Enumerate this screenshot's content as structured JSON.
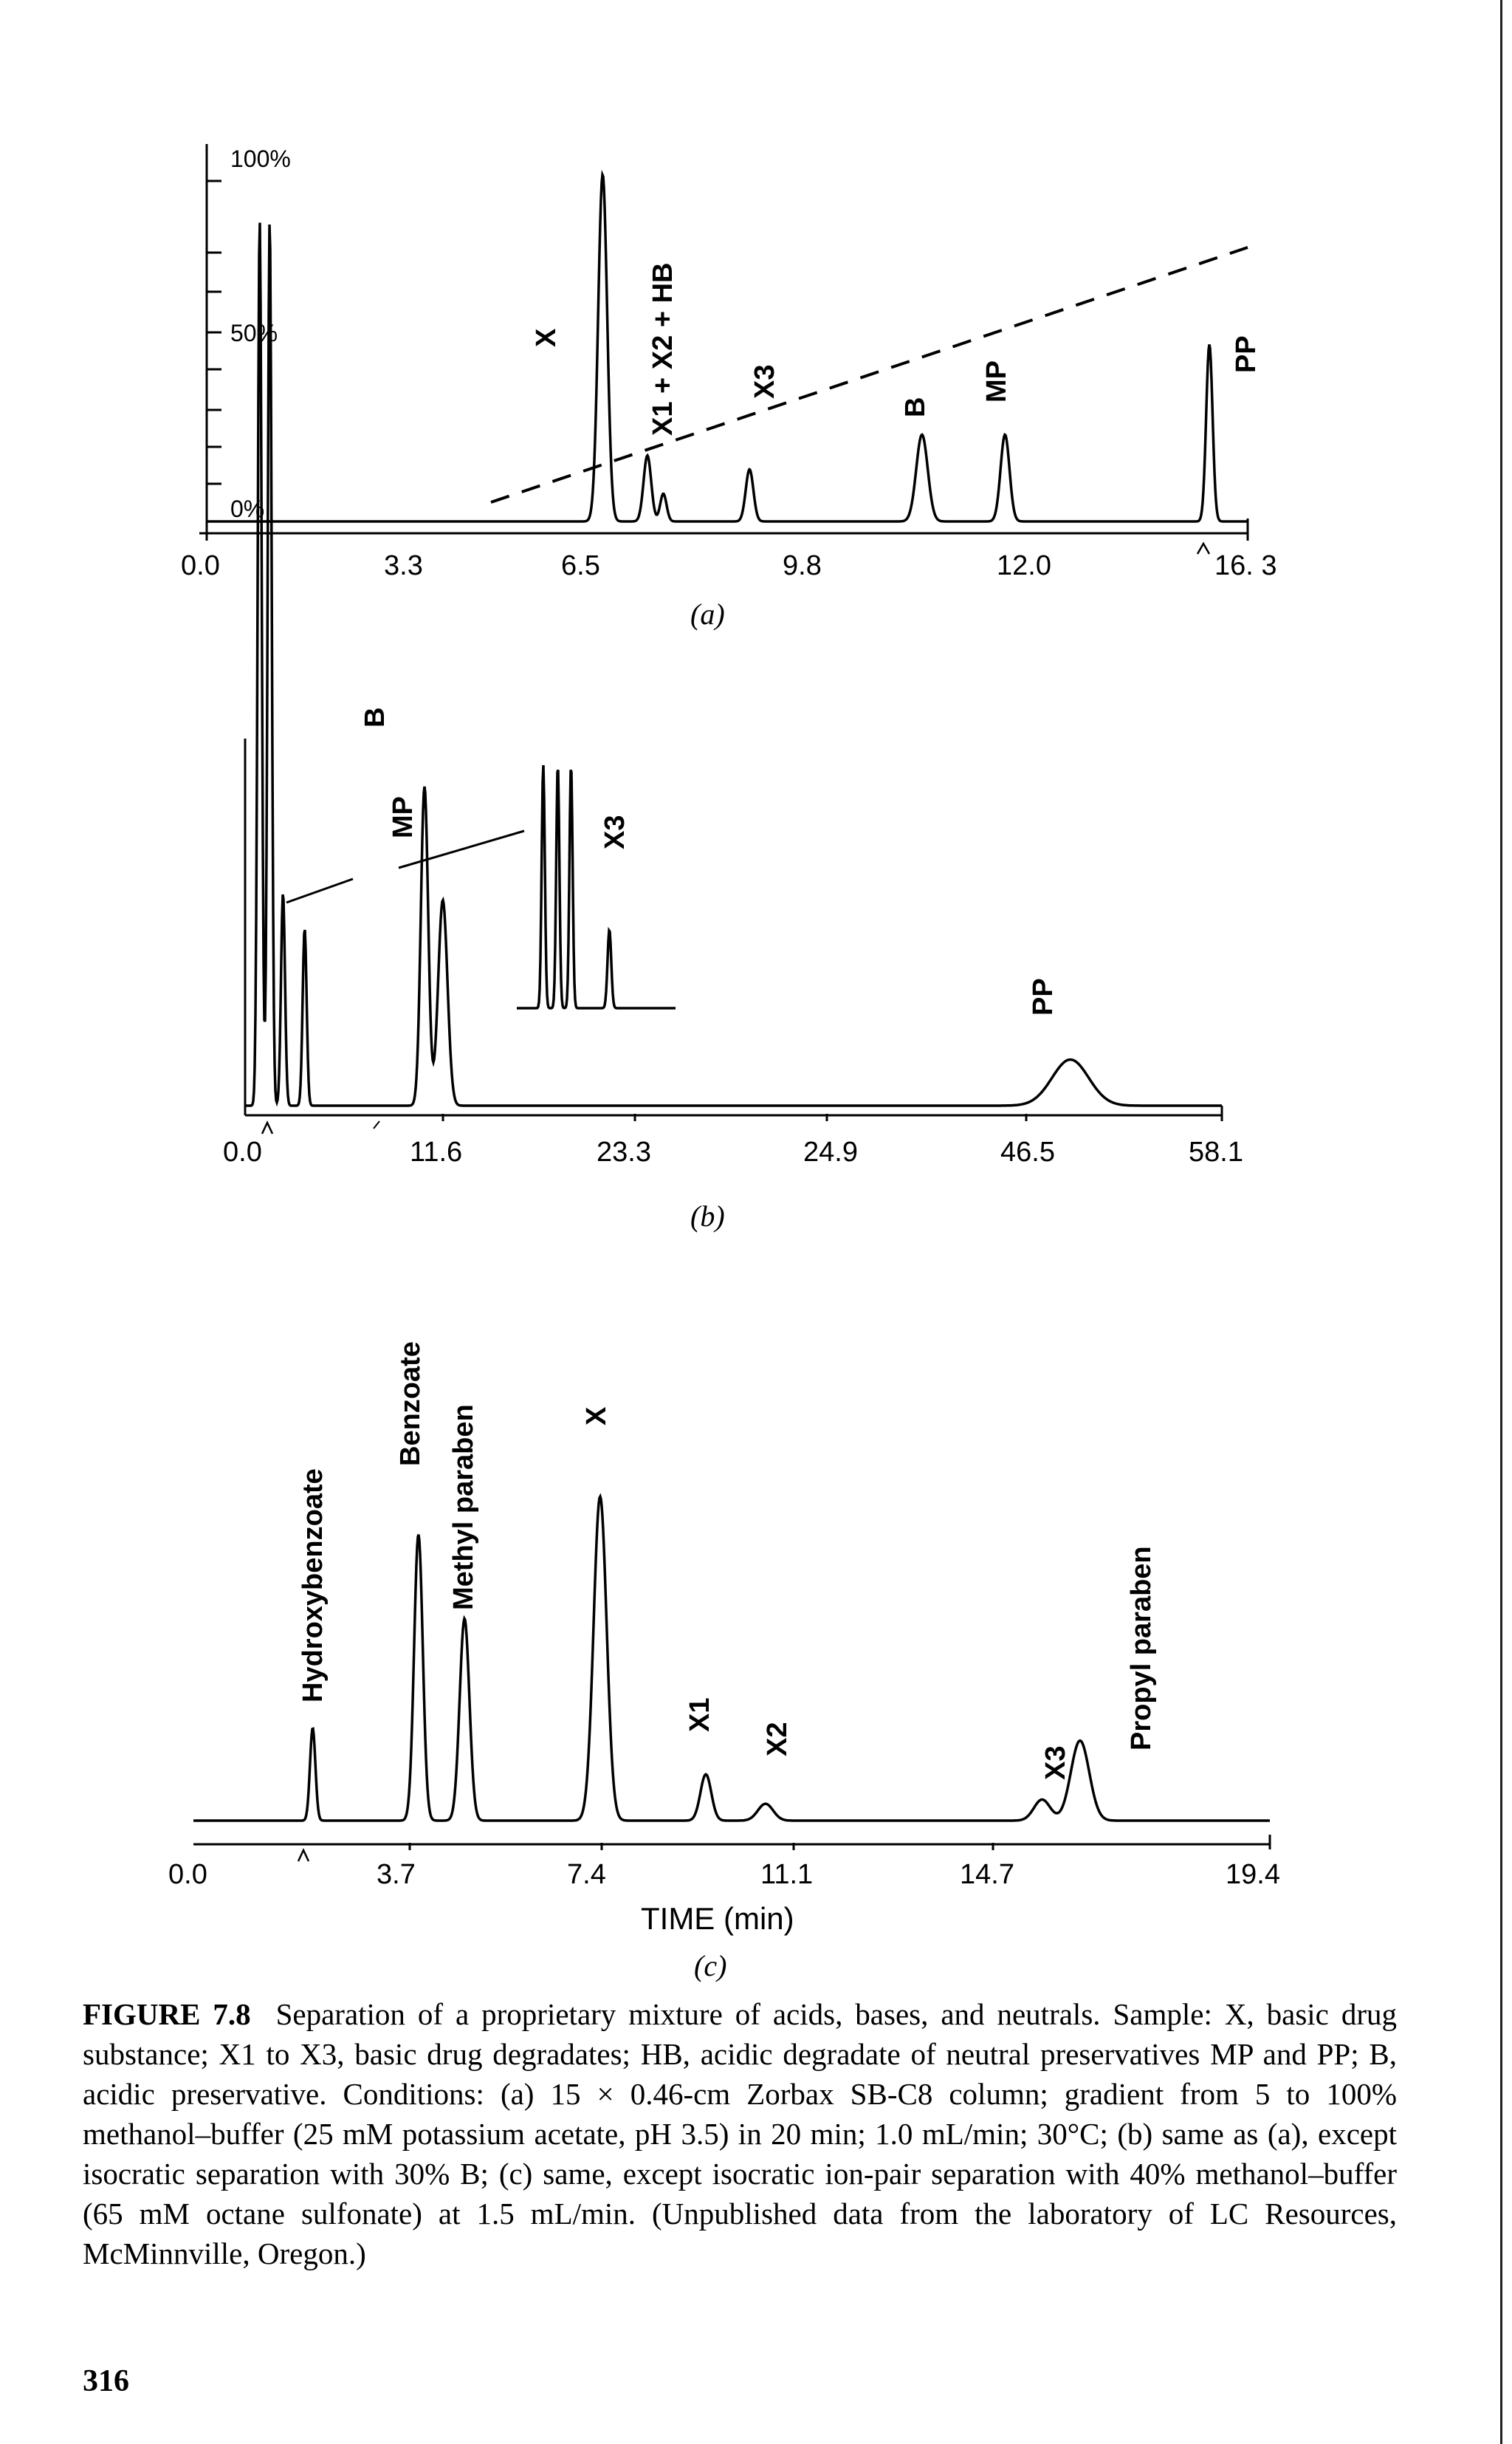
{
  "panels": [
    {
      "id": "a",
      "sublabel": "(a)",
      "x_ticks": [
        "0.0",
        "3.3",
        "6.5",
        "9.8",
        "12.0",
        "16. 3"
      ],
      "y_labels": [
        "100%",
        "50%",
        "0%"
      ],
      "peaks": [
        "X",
        "X1 + X2 + HB",
        "X3",
        "B",
        "MP",
        "PP"
      ],
      "gradient": {
        "start_percent": 5,
        "end_percent": 100
      }
    },
    {
      "id": "b",
      "sublabel": "(b)",
      "x_ticks": [
        "0.0",
        "11.6",
        "23.3",
        "24.9",
        "46.5",
        "58.1"
      ],
      "peaks": [
        "B",
        "MP",
        "X3",
        "PP"
      ]
    },
    {
      "id": "c",
      "sublabel": "(c)",
      "x_ticks": [
        "0.0",
        "3.7",
        "7.4",
        "11.1",
        "14.7",
        "19.4"
      ],
      "x_title": "TIME (min)",
      "peaks": [
        "Hydroxybenzoate",
        "Benzoate",
        "Methyl paraben",
        "X",
        "X1",
        "X2",
        "X3",
        "Propyl paraben"
      ]
    }
  ],
  "chart_data": [
    {
      "type": "line",
      "xlabel": "",
      "ylabel": "",
      "x_ticks": [
        0.0,
        3.3,
        6.5,
        9.8,
        12.0,
        16.3
      ],
      "xlim": [
        0.0,
        16.3
      ],
      "series": [
        {
          "peaks": [
            {
              "label": "X",
              "retention_time": 6.2,
              "relative_height": 1.0
            },
            {
              "label": "X1 + X2 + HB",
              "retention_time": 6.9,
              "relative_height": 0.19
            },
            {
              "label": "X3",
              "retention_time": 8.5,
              "relative_height": 0.15
            },
            {
              "label": "B",
              "retention_time": 11.2,
              "relative_height": 0.25
            },
            {
              "label": "MP",
              "retention_time": 12.5,
              "relative_height": 0.25
            },
            {
              "label": "PP",
              "retention_time": 15.7,
              "relative_height": 0.51
            }
          ]
        }
      ],
      "gradient_program": {
        "y_axis": "%B",
        "start": [
          4.6,
          5
        ],
        "end": [
          16.7,
          100
        ]
      }
    },
    {
      "type": "line",
      "xlabel": "",
      "ylabel": "",
      "x_ticks": [
        0.0,
        11.6,
        23.3,
        24.9,
        46.5,
        58.1
      ],
      "xlim": [
        0.0,
        58.1
      ],
      "series": [
        {
          "peaks": [
            {
              "label": "B",
              "retention_time": 10.2,
              "relative_height": 0.9
            },
            {
              "label": "MP",
              "retention_time": 11.3,
              "relative_height": 0.58
            },
            {
              "label": "X3",
              "retention_time": 22.5,
              "relative_height": 0.38
            },
            {
              "label": "PP",
              "retention_time": 49.0,
              "relative_height": 0.13
            }
          ]
        }
      ]
    },
    {
      "type": "line",
      "xlabel": "TIME (min)",
      "ylabel": "",
      "x_ticks": [
        0.0,
        3.7,
        7.4,
        11.1,
        14.7,
        19.4
      ],
      "xlim": [
        0.0,
        19.4
      ],
      "series": [
        {
          "peaks": [
            {
              "label": "Hydroxybenzoate",
              "retention_time": 1.75,
              "relative_height": 0.22
            },
            {
              "label": "Benzoate",
              "retention_time": 3.7,
              "relative_height": 0.68
            },
            {
              "label": "Methyl paraben",
              "retention_time": 4.55,
              "relative_height": 0.48
            },
            {
              "label": "X",
              "retention_time": 7.05,
              "relative_height": 0.77
            },
            {
              "label": "X1",
              "retention_time": 9.0,
              "relative_height": 0.11
            },
            {
              "label": "X2",
              "retention_time": 10.1,
              "relative_height": 0.04
            },
            {
              "label": "X3",
              "retention_time": 15.2,
              "relative_height": 0.05
            },
            {
              "label": "Propyl paraben",
              "retention_time": 15.9,
              "relative_height": 0.19
            }
          ]
        }
      ]
    }
  ],
  "caption": {
    "figure_label": "FIGURE 7.8",
    "text": "Separation of a proprietary mixture of acids, bases, and neutrals. Sample: X, basic drug substance; X1 to X3, basic drug degradates; HB, acidic degradate of neutral preservatives MP and PP; B, acidic preservative. Conditions: (a) 15 × 0.46-cm Zorbax SB-C8 column; gradient from 5 to 100% methanol–buffer (25 mM potassium acetate, pH 3.5) in 20 min; 1.0 mL/min; 30°C; (b) same as (a), except isocratic separation with 30% B; (c) same, except isocratic ion-pair separation with 40% methanol–buffer (65 mM octane sulfonate) at 1.5 mL/min. (Unpublished data from the laboratory of LC Resources, McMinnville, Oregon.)"
  },
  "page_number": "316"
}
